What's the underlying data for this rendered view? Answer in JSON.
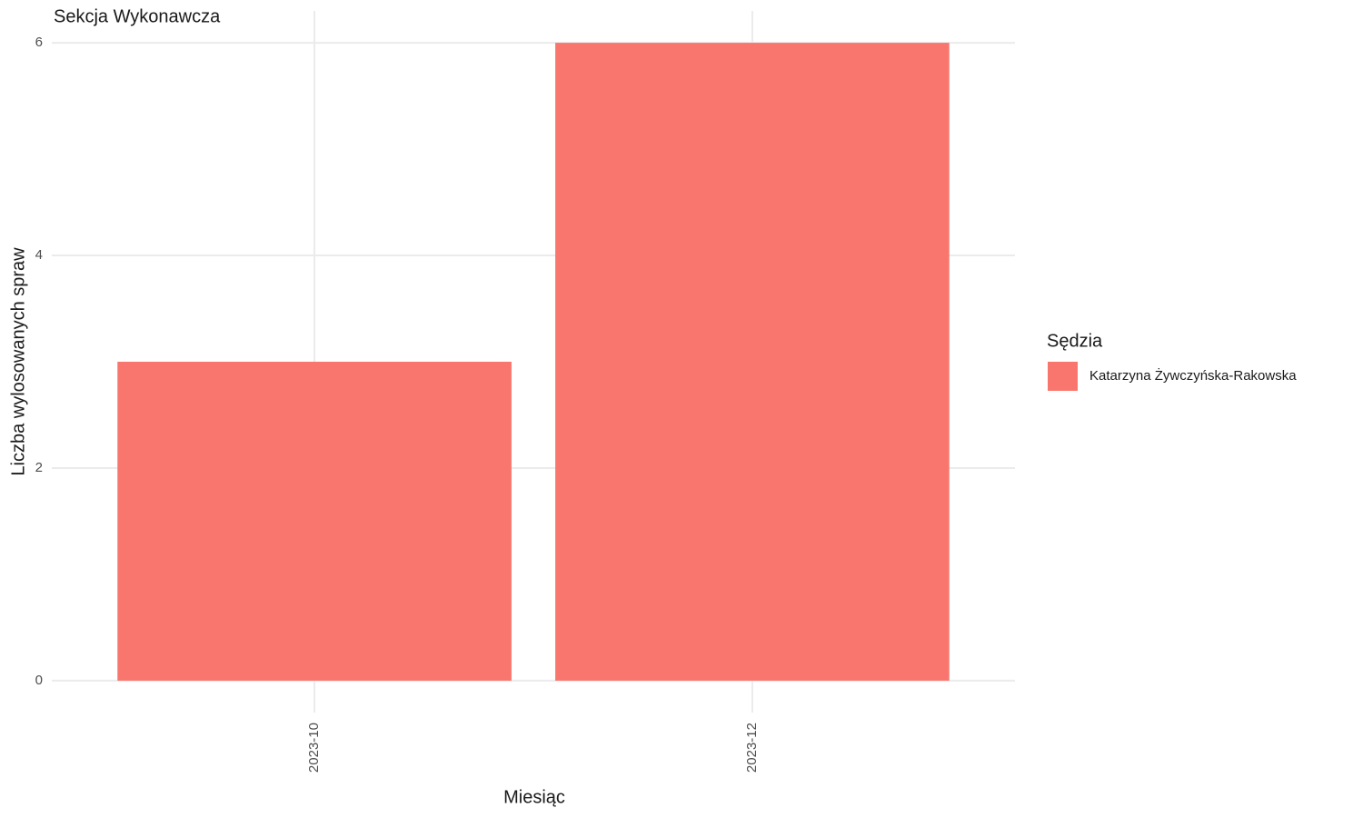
{
  "chart_data": {
    "type": "bar",
    "title": "Sekcja Wykonawcza",
    "x_label": "Miesiąc",
    "y_label": "Liczba wylosowanych spraw",
    "categories": [
      "2023-10",
      "2023-12"
    ],
    "legend_title": "Sędzia",
    "series": [
      {
        "name": "Katarzyna Żywczyńska-Rakowska",
        "color": "#F8766D",
        "values": [
          3,
          6
        ]
      }
    ],
    "ylim": [
      -0.3,
      6.3
    ],
    "yticks": [
      0,
      2,
      4,
      6
    ],
    "grid": true,
    "legend": "right"
  }
}
